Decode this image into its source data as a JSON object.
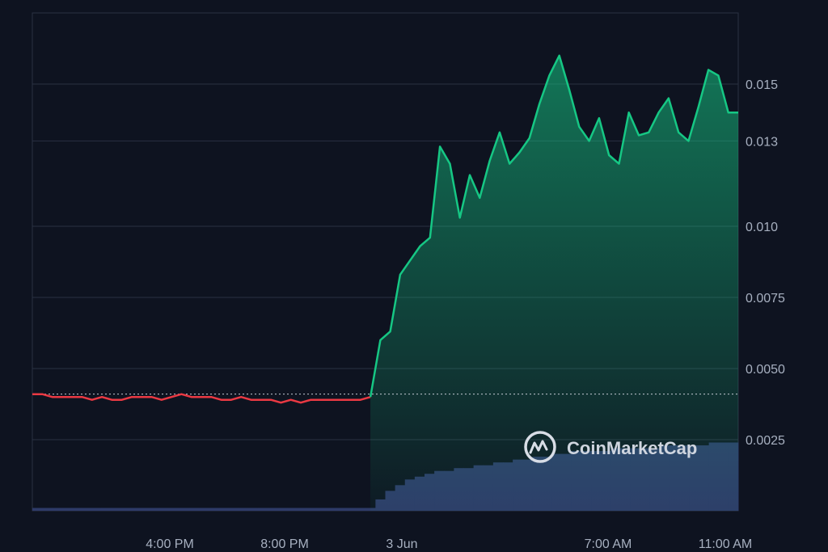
{
  "chart_data": {
    "type": "area",
    "title": "",
    "xlabel": "",
    "ylabel": "",
    "x_ticks": [
      "4:00 PM",
      "8:00 PM",
      "3 Jun",
      "7:00 AM",
      "11:00 AM"
    ],
    "y_ticks": [
      "0.0025",
      "0.0050",
      "0.0075",
      "0.010",
      "0.013",
      "0.015"
    ],
    "ylim": [
      0.0,
      0.0175
    ],
    "grid": true,
    "baseline": 0.0041,
    "watermark": "CoinMarketCap",
    "colors": {
      "up": "#16c784",
      "down": "#ea3943",
      "volume": "#2e3a68",
      "grid": "#2a3142",
      "background": "#0e1320"
    },
    "series": [
      {
        "values": [
          0.0041,
          0.0041,
          0.004,
          0.004,
          0.004,
          0.004,
          0.0039,
          0.004,
          0.0039,
          0.0039,
          0.004,
          0.004,
          0.004,
          0.0039,
          0.004,
          0.0041,
          0.004,
          0.004,
          0.004,
          0.0039,
          0.0039,
          0.004,
          0.0039,
          0.0039,
          0.0039,
          0.0038,
          0.0039,
          0.0038,
          0.0039,
          0.0039,
          0.0039,
          0.0039,
          0.0039,
          0.0039,
          0.004,
          0.006,
          0.0063,
          0.0083,
          0.0088,
          0.0093,
          0.0096,
          0.0128,
          0.0122,
          0.0103,
          0.0118,
          0.011,
          0.0123,
          0.0133,
          0.0122,
          0.0126,
          0.0131,
          0.0143,
          0.0153,
          0.016,
          0.0148,
          0.0135,
          0.013,
          0.0138,
          0.0125,
          0.0122,
          0.014,
          0.0132,
          0.0133,
          0.014,
          0.0145,
          0.0133,
          0.013,
          0.0142,
          0.0155,
          0.0153,
          0.014,
          0.014
        ]
      }
    ],
    "volume": [
      0.0001,
      0.0001,
      0.0001,
      0.0001,
      0.0001,
      0.0001,
      0.0001,
      0.0001,
      0.0001,
      0.0001,
      0.0001,
      0.0001,
      0.0001,
      0.0001,
      0.0001,
      0.0001,
      0.0001,
      0.0001,
      0.0001,
      0.0001,
      0.0001,
      0.0001,
      0.0001,
      0.0001,
      0.0001,
      0.0001,
      0.0001,
      0.0001,
      0.0001,
      0.0001,
      0.0001,
      0.0001,
      0.0001,
      0.0001,
      0.0001,
      0.0004,
      0.0007,
      0.0009,
      0.0011,
      0.0012,
      0.0013,
      0.0014,
      0.0014,
      0.0015,
      0.0015,
      0.0016,
      0.0016,
      0.0017,
      0.0017,
      0.0018,
      0.0018,
      0.0019,
      0.0019,
      0.002,
      0.002,
      0.0021,
      0.0021,
      0.0021,
      0.0021,
      0.0022,
      0.0022,
      0.0022,
      0.0022,
      0.0022,
      0.0023,
      0.0023,
      0.0023,
      0.0023,
      0.0023,
      0.0024,
      0.0024,
      0.0024
    ]
  }
}
